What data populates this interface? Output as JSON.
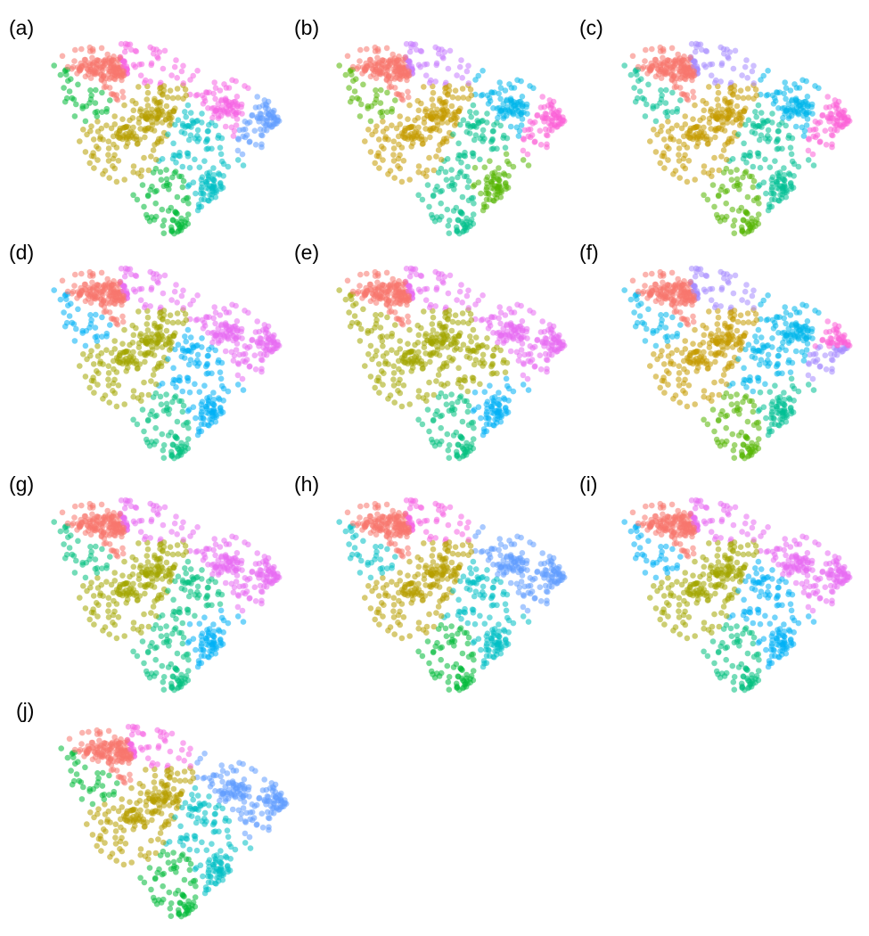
{
  "figure": {
    "panels": [
      {
        "label": "(a)",
        "clusters": [
          {
            "c": 0,
            "color": "#F8766D"
          },
          {
            "c": 1,
            "color": "#B79F00"
          },
          {
            "c": 2,
            "color": "#00BA38"
          },
          {
            "c": 3,
            "color": "#00BFC4"
          },
          {
            "c": 4,
            "color": "#F564E3"
          },
          {
            "c": 5,
            "color": "#F564E3"
          },
          {
            "c": 6,
            "color": "#619CFF"
          },
          {
            "c": 7,
            "color": "#00BFC4"
          },
          {
            "c": 8,
            "color": "#B79F00"
          },
          {
            "c": 9,
            "color": "#00BA38"
          },
          {
            "c": 10,
            "color": "#619CFF"
          }
        ]
      },
      {
        "label": "(b)",
        "clusters": [
          {
            "c": 0,
            "color": "#F8766D"
          },
          {
            "c": 1,
            "color": "#C49A00"
          },
          {
            "c": 2,
            "color": "#00C08B"
          },
          {
            "c": 3,
            "color": "#53B400"
          },
          {
            "c": 4,
            "color": "#00B6EB"
          },
          {
            "c": 5,
            "color": "#C77CFF"
          },
          {
            "c": 6,
            "color": "#FB61D7"
          },
          {
            "c": 7,
            "color": "#00C08B"
          },
          {
            "c": 8,
            "color": "#C49A00"
          },
          {
            "c": 9,
            "color": "#53B400"
          },
          {
            "c": 10,
            "color": "#FB61D7"
          }
        ]
      },
      {
        "label": "(c)",
        "clusters": [
          {
            "c": 0,
            "color": "#F8766D"
          },
          {
            "c": 1,
            "color": "#C49A00"
          },
          {
            "c": 2,
            "color": "#53B400"
          },
          {
            "c": 3,
            "color": "#00C094"
          },
          {
            "c": 4,
            "color": "#00B6EB"
          },
          {
            "c": 5,
            "color": "#A58AFF"
          },
          {
            "c": 6,
            "color": "#FB61D7"
          },
          {
            "c": 7,
            "color": "#00C094"
          },
          {
            "c": 8,
            "color": "#C49A00"
          },
          {
            "c": 9,
            "color": "#00C094"
          },
          {
            "c": 10,
            "color": "#FB61D7"
          }
        ]
      },
      {
        "label": "(d)",
        "clusters": [
          {
            "c": 0,
            "color": "#F8766D"
          },
          {
            "c": 1,
            "color": "#A3A500"
          },
          {
            "c": 2,
            "color": "#00BF7D"
          },
          {
            "c": 3,
            "color": "#00B0F6"
          },
          {
            "c": 4,
            "color": "#E76BF3"
          },
          {
            "c": 5,
            "color": "#E76BF3"
          },
          {
            "c": 6,
            "color": "#E76BF3"
          },
          {
            "c": 7,
            "color": "#00B0F6"
          },
          {
            "c": 8,
            "color": "#A3A500"
          },
          {
            "c": 9,
            "color": "#00B0F6"
          },
          {
            "c": 10,
            "color": "#E76BF3"
          }
        ]
      },
      {
        "label": "(e)",
        "clusters": [
          {
            "c": 0,
            "color": "#F8766D"
          },
          {
            "c": 1,
            "color": "#A3A500"
          },
          {
            "c": 2,
            "color": "#00BF7D"
          },
          {
            "c": 3,
            "color": "#00B0F6"
          },
          {
            "c": 4,
            "color": "#E76BF3"
          },
          {
            "c": 5,
            "color": "#E76BF3"
          },
          {
            "c": 6,
            "color": "#E76BF3"
          },
          {
            "c": 7,
            "color": "#A3A500"
          },
          {
            "c": 8,
            "color": "#A3A500"
          },
          {
            "c": 9,
            "color": "#A3A500"
          },
          {
            "c": 10,
            "color": "#E76BF3"
          }
        ]
      },
      {
        "label": "(f)",
        "clusters": [
          {
            "c": 0,
            "color": "#F8766D"
          },
          {
            "c": 1,
            "color": "#C49A00"
          },
          {
            "c": 2,
            "color": "#53B400"
          },
          {
            "c": 3,
            "color": "#00C094"
          },
          {
            "c": 4,
            "color": "#00B6EB"
          },
          {
            "c": 5,
            "color": "#A58AFF"
          },
          {
            "c": 6,
            "color": "#FB61D7"
          },
          {
            "c": 7,
            "color": "#00B6EB"
          },
          {
            "c": 8,
            "color": "#C49A00"
          },
          {
            "c": 9,
            "color": "#00B6EB"
          },
          {
            "c": 10,
            "color": "#A58AFF"
          }
        ]
      },
      {
        "label": "(g)",
        "clusters": [
          {
            "c": 0,
            "color": "#F8766D"
          },
          {
            "c": 1,
            "color": "#A3A500"
          },
          {
            "c": 2,
            "color": "#00BF7D"
          },
          {
            "c": 3,
            "color": "#00B0F6"
          },
          {
            "c": 4,
            "color": "#E76BF3"
          },
          {
            "c": 5,
            "color": "#E76BF3"
          },
          {
            "c": 6,
            "color": "#E76BF3"
          },
          {
            "c": 7,
            "color": "#00BF7D"
          },
          {
            "c": 8,
            "color": "#A3A500"
          },
          {
            "c": 9,
            "color": "#00BF7D"
          },
          {
            "c": 10,
            "color": "#E76BF3"
          }
        ]
      },
      {
        "label": "(h)",
        "clusters": [
          {
            "c": 0,
            "color": "#F8766D"
          },
          {
            "c": 1,
            "color": "#B79F00"
          },
          {
            "c": 2,
            "color": "#00BA38"
          },
          {
            "c": 3,
            "color": "#00BFC4"
          },
          {
            "c": 4,
            "color": "#619CFF"
          },
          {
            "c": 5,
            "color": "#F564E3"
          },
          {
            "c": 6,
            "color": "#619CFF"
          },
          {
            "c": 7,
            "color": "#00BFC4"
          },
          {
            "c": 8,
            "color": "#B79F00"
          },
          {
            "c": 9,
            "color": "#00BFC4"
          },
          {
            "c": 10,
            "color": "#619CFF"
          }
        ]
      },
      {
        "label": "(i)",
        "clusters": [
          {
            "c": 0,
            "color": "#F8766D"
          },
          {
            "c": 1,
            "color": "#A3A500"
          },
          {
            "c": 2,
            "color": "#00BF7D"
          },
          {
            "c": 3,
            "color": "#00B0F6"
          },
          {
            "c": 4,
            "color": "#E76BF3"
          },
          {
            "c": 5,
            "color": "#E76BF3"
          },
          {
            "c": 6,
            "color": "#E76BF3"
          },
          {
            "c": 7,
            "color": "#00B0F6"
          },
          {
            "c": 8,
            "color": "#A3A500"
          },
          {
            "c": 9,
            "color": "#00B0F6"
          },
          {
            "c": 10,
            "color": "#E76BF3"
          }
        ]
      },
      {
        "label": "(j)",
        "clusters": [
          {
            "c": 0,
            "color": "#F8766D"
          },
          {
            "c": 1,
            "color": "#B79F00"
          },
          {
            "c": 2,
            "color": "#00BA38"
          },
          {
            "c": 3,
            "color": "#00BFC4"
          },
          {
            "c": 4,
            "color": "#619CFF"
          },
          {
            "c": 5,
            "color": "#F564E3"
          },
          {
            "c": 6,
            "color": "#619CFF"
          },
          {
            "c": 7,
            "color": "#00BFC4"
          },
          {
            "c": 8,
            "color": "#B79F00"
          },
          {
            "c": 9,
            "color": "#00BA38"
          },
          {
            "c": 10,
            "color": "#619CFF"
          }
        ]
      }
    ]
  }
}
